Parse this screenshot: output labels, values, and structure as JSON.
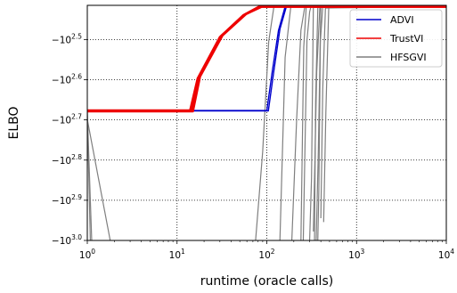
{
  "chart_data": {
    "type": "line",
    "xlabel": "runtime (oracle calls)",
    "ylabel": "ELBO",
    "x_scale": "log",
    "x_ticks": [
      {
        "value": 1,
        "label_base": "10",
        "label_exp": "0"
      },
      {
        "value": 10,
        "label_base": "10",
        "label_exp": "1"
      },
      {
        "value": 100,
        "label_base": "10",
        "label_exp": "2"
      },
      {
        "value": 1000,
        "label_base": "10",
        "label_exp": "3"
      },
      {
        "value": 10000,
        "label_base": "10",
        "label_exp": "4"
      }
    ],
    "y_scale": "log",
    "y_ticks": [
      {
        "value": -316.2,
        "label_prefix": "−",
        "label_base": "10",
        "label_exp": "2.5"
      },
      {
        "value": -398.1,
        "label_prefix": "−",
        "label_base": "10",
        "label_exp": "2.6"
      },
      {
        "value": -501.2,
        "label_prefix": "−",
        "label_base": "10",
        "label_exp": "2.7"
      },
      {
        "value": -631.0,
        "label_prefix": "−",
        "label_base": "10",
        "label_exp": "2.8"
      },
      {
        "value": -794.3,
        "label_prefix": "−",
        "label_base": "10",
        "label_exp": "2.9"
      },
      {
        "value": -1000.0,
        "label_prefix": "−",
        "label_base": "10",
        "label_exp": "3.0"
      }
    ],
    "xlim": [
      1,
      10000
    ],
    "ylim": [
      -1000,
      -260
    ],
    "grid": true,
    "legend_position": "top-right",
    "series": [
      {
        "name": "ADVI",
        "color": "#0000cc",
        "runs": [
          [
            [
              1,
              -475
            ],
            [
              100,
              -475
            ],
            [
              115,
              -380
            ],
            [
              135,
              -300
            ],
            [
              160,
              -262
            ],
            [
              10000,
              -262
            ]
          ],
          [
            [
              1,
              -476
            ],
            [
              104,
              -476
            ],
            [
              120,
              -378
            ],
            [
              140,
              -298
            ],
            [
              165,
              -262
            ],
            [
              10000,
              -262
            ]
          ]
        ]
      },
      {
        "name": "TrustVI",
        "color": "#ee0000",
        "runs": [
          [
            [
              1,
              -475
            ],
            [
              14,
              -475
            ],
            [
              17,
              -395
            ],
            [
              30,
              -312
            ],
            [
              55,
              -275
            ],
            [
              82,
              -262
            ],
            [
              10000,
              -262
            ]
          ],
          [
            [
              1,
              -476
            ],
            [
              14.5,
              -476
            ],
            [
              17.5,
              -393
            ],
            [
              31,
              -310
            ],
            [
              57,
              -274
            ],
            [
              85,
              -262
            ],
            [
              10000,
              -262
            ]
          ],
          [
            [
              1,
              -477
            ],
            [
              15,
              -477
            ],
            [
              18,
              -391
            ],
            [
              32,
              -309
            ],
            [
              59,
              -273
            ],
            [
              88,
              -262
            ],
            [
              10000,
              -262
            ]
          ]
        ]
      },
      {
        "name": "HFSGVI",
        "color": "#7f7f7f",
        "runs": [
          [
            [
              1,
              -475
            ],
            [
              1.08,
              -1000
            ]
          ],
          [
            [
              1,
              -480
            ],
            [
              1.12,
              -1000
            ]
          ],
          [
            [
              1,
              -500
            ],
            [
              1.8,
              -1000
            ]
          ],
          [
            [
              75,
              -1000
            ],
            [
              90,
              -600
            ],
            [
              105,
              -320
            ],
            [
              120,
              -262
            ],
            [
              10000,
              -262
            ]
          ],
          [
            [
              140,
              -1000
            ],
            [
              160,
              -350
            ],
            [
              185,
              -262
            ],
            [
              10000,
              -262
            ]
          ],
          [
            [
              190,
              -1000
            ],
            [
              215,
              -500
            ],
            [
              240,
              -300
            ],
            [
              265,
              -262
            ],
            [
              10000,
              -262
            ]
          ],
          [
            [
              240,
              -1000
            ],
            [
              258,
              -330
            ],
            [
              275,
              -262
            ],
            [
              10000,
              -262
            ]
          ],
          [
            [
              255,
              -1000
            ],
            [
              280,
              -318
            ],
            [
              300,
              -270
            ],
            [
              310,
              -262
            ],
            [
              10000,
              -262
            ]
          ],
          [
            [
              300,
              -1000
            ],
            [
              315,
              -700
            ],
            [
              330,
              -263
            ],
            [
              10000,
              -262
            ]
          ],
          [
            [
              340,
              -1000
            ],
            [
              350,
              -450
            ],
            [
              370,
              -263
            ],
            [
              10000,
              -262
            ]
          ],
          [
            [
              355,
              -1000
            ],
            [
              375,
              -600
            ],
            [
              400,
              -262
            ],
            [
              10000,
              -262
            ]
          ],
          [
            [
              370,
              -1000
            ],
            [
              380,
              -750
            ],
            [
              395,
              -320
            ],
            [
              420,
              -262
            ],
            [
              10000,
              -262
            ]
          ],
          [
            [
              330,
              -950
            ],
            [
              345,
              -600
            ],
            [
              360,
              -380
            ],
            [
              390,
              -262
            ],
            [
              10000,
              -262
            ]
          ],
          [
            [
              400,
              -880
            ],
            [
              420,
              -420
            ],
            [
              450,
              -264
            ],
            [
              10000,
              -262
            ]
          ],
          [
            [
              430,
              -900
            ],
            [
              455,
              -480
            ],
            [
              490,
              -262
            ],
            [
              10000,
              -262
            ]
          ]
        ]
      }
    ]
  }
}
